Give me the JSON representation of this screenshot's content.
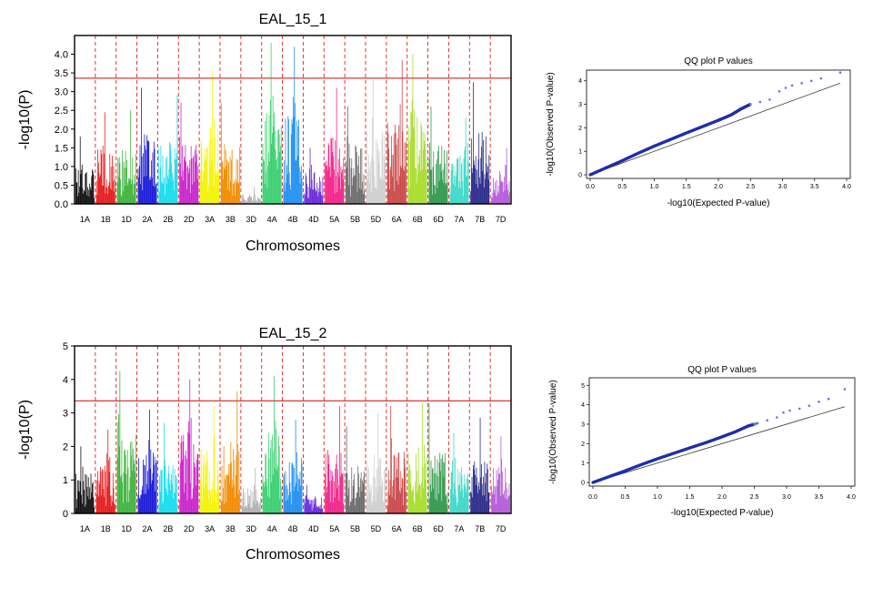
{
  "chart_data": [
    {
      "type": "manhattan",
      "title": "EAL_15_1",
      "xlabel": "Chromosomes",
      "ylabel": "-log10(P)",
      "ylim": [
        0,
        4.5
      ],
      "yticks": [
        "0.0",
        "0.5",
        "1.0",
        "1.5",
        "2.0",
        "2.5",
        "3.0",
        "3.5",
        "4.0"
      ],
      "threshold": 3.36,
      "threshold_color": "#d93a3a",
      "chromosomes": [
        "1A",
        "1B",
        "1D",
        "2A",
        "2B",
        "2D",
        "3A",
        "3B",
        "3D",
        "4A",
        "4B",
        "4D",
        "5A",
        "5B",
        "5D",
        "6A",
        "6B",
        "6D",
        "7A",
        "7B",
        "7D"
      ],
      "chromosome_peaks": [
        1.8,
        2.45,
        2.5,
        3.1,
        2.9,
        2.7,
        3.55,
        2.7,
        0.45,
        4.3,
        4.2,
        1.5,
        3.1,
        2.6,
        3.3,
        3.85,
        4.0,
        2.6,
        2.3,
        3.25,
        1.5
      ],
      "colors": [
        "#111111",
        "#e8191b",
        "#3cb43c",
        "#1b1bd8",
        "#18dcec",
        "#cc22cc",
        "#f4f400",
        "#f08c00",
        "#b0b0b0",
        "#38d070",
        "#1f8ff2",
        "#6a2ad8",
        "#f0238a",
        "#6b6b6b",
        "#cfcfcf",
        "#c84848",
        "#a8dc2c",
        "#2e9a4a",
        "#3cd8c8",
        "#2a2a8a",
        "#b45ad8"
      ]
    },
    {
      "type": "manhattan",
      "title": "EAL_15_2",
      "xlabel": "Chromosomes",
      "ylabel": "-log10(P)",
      "ylim": [
        0,
        5
      ],
      "yticks": [
        "0",
        "1",
        "2",
        "3",
        "4",
        "5"
      ],
      "threshold": 3.36,
      "threshold_color": "#d93a3a",
      "chromosomes": [
        "1A",
        "1B",
        "1D",
        "2A",
        "2B",
        "2D",
        "3A",
        "3B",
        "3D",
        "4A",
        "4B",
        "4D",
        "5A",
        "5B",
        "5D",
        "6A",
        "6B",
        "6D",
        "7A",
        "7B",
        "7D"
      ],
      "chromosome_peaks": [
        2.0,
        2.5,
        4.25,
        3.1,
        2.7,
        4.0,
        3.2,
        3.65,
        1.35,
        4.1,
        2.8,
        0.85,
        3.2,
        2.6,
        3.0,
        3.2,
        3.3,
        3.3,
        2.4,
        2.85,
        2.3
      ],
      "colors": [
        "#111111",
        "#e8191b",
        "#3cb43c",
        "#1b1bd8",
        "#18dcec",
        "#cc22cc",
        "#f4f400",
        "#f08c00",
        "#b0b0b0",
        "#38d070",
        "#1f8ff2",
        "#6a2ad8",
        "#f0238a",
        "#6b6b6b",
        "#cfcfcf",
        "#c84848",
        "#a8dc2c",
        "#2e9a4a",
        "#3cd8c8",
        "#2a2a8a",
        "#b45ad8"
      ]
    },
    {
      "type": "scatter",
      "title": "QQ plot P values",
      "xlabel": "-log10(Expected P-value)",
      "ylabel": "-log10(Observed P-value)",
      "xlim": [
        0,
        4
      ],
      "ylim": [
        0,
        4.3
      ],
      "xticks": [
        "0.0",
        "0.5",
        "1.0",
        "1.5",
        "2.0",
        "2.5",
        "3.0",
        "3.5",
        "4.0"
      ],
      "yticks": [
        "0",
        "1",
        "2",
        "3",
        "4"
      ],
      "points": [
        [
          0,
          0
        ],
        [
          0.25,
          0.3
        ],
        [
          0.5,
          0.6
        ],
        [
          0.75,
          0.92
        ],
        [
          1.0,
          1.22
        ],
        [
          1.25,
          1.5
        ],
        [
          1.5,
          1.78
        ],
        [
          1.75,
          2.05
        ],
        [
          2.0,
          2.32
        ],
        [
          2.2,
          2.55
        ],
        [
          2.35,
          2.8
        ],
        [
          2.5,
          3.0
        ],
        [
          2.65,
          3.1
        ],
        [
          2.8,
          3.2
        ],
        [
          2.95,
          3.55
        ],
        [
          3.05,
          3.7
        ],
        [
          3.15,
          3.8
        ],
        [
          3.3,
          3.9
        ],
        [
          3.45,
          4.0
        ],
        [
          3.6,
          4.1
        ],
        [
          3.9,
          4.35
        ]
      ],
      "reference_line": [
        [
          0,
          0
        ],
        [
          3.9,
          3.9
        ]
      ],
      "point_color": "#1f2fa8"
    },
    {
      "type": "scatter",
      "title": "QQ plot P values",
      "xlabel": "-log10(Expected P-value)",
      "ylabel": "-log10(Observed P-value)",
      "xlim": [
        0,
        4
      ],
      "ylim": [
        0,
        5.2
      ],
      "xticks": [
        "0.0",
        "0.5",
        "1.0",
        "1.5",
        "2.0",
        "2.5",
        "3.0",
        "3.5",
        "4.0"
      ],
      "yticks": [
        "0",
        "1",
        "2",
        "3",
        "4",
        "5"
      ],
      "points": [
        [
          0,
          0
        ],
        [
          0.25,
          0.3
        ],
        [
          0.5,
          0.6
        ],
        [
          0.75,
          0.92
        ],
        [
          1.0,
          1.22
        ],
        [
          1.25,
          1.5
        ],
        [
          1.5,
          1.78
        ],
        [
          1.75,
          2.05
        ],
        [
          2.0,
          2.35
        ],
        [
          2.2,
          2.6
        ],
        [
          2.4,
          2.9
        ],
        [
          2.55,
          3.05
        ],
        [
          2.7,
          3.2
        ],
        [
          2.85,
          3.35
        ],
        [
          2.95,
          3.6
        ],
        [
          3.05,
          3.7
        ],
        [
          3.2,
          3.8
        ],
        [
          3.35,
          3.95
        ],
        [
          3.5,
          4.15
        ],
        [
          3.65,
          4.3
        ],
        [
          3.9,
          4.8
        ]
      ],
      "reference_line": [
        [
          0,
          0
        ],
        [
          3.9,
          3.9
        ]
      ],
      "point_color": "#1f2fa8"
    }
  ]
}
